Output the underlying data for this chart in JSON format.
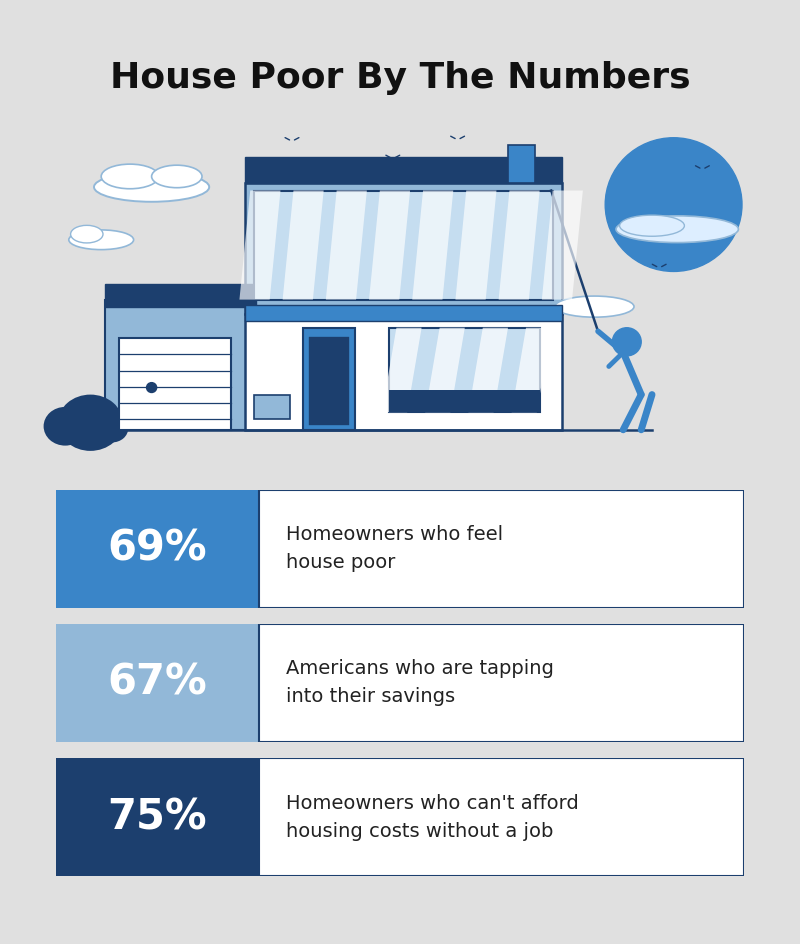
{
  "title": "House Poor By The Numbers",
  "title_fontsize": 26,
  "background_color": "#ffffff",
  "outer_bg_color": "#e0e0e0",
  "stats": [
    {
      "percent": "69%",
      "description": "Homeowners who feel\nhouse poor",
      "box_color": "#3a85c8",
      "border_color": "#1c3f6e"
    },
    {
      "percent": "67%",
      "description": "Americans who are tapping\ninto their savings",
      "box_color": "#92b8d8",
      "border_color": "#1c3f6e"
    },
    {
      "percent": "75%",
      "description": "Homeowners who can't afford\nhousing costs without a job",
      "box_color": "#1c3f6e",
      "border_color": "#1c3f6e"
    }
  ],
  "percent_fontsize": 30,
  "desc_fontsize": 14,
  "percent_color": "#ffffff",
  "desc_color": "#222222",
  "dark_blue": "#1c3f6e",
  "mid_blue": "#3a85c8",
  "light_blue": "#92b8d8",
  "pale_blue": "#c5ddf0",
  "white": "#ffffff"
}
